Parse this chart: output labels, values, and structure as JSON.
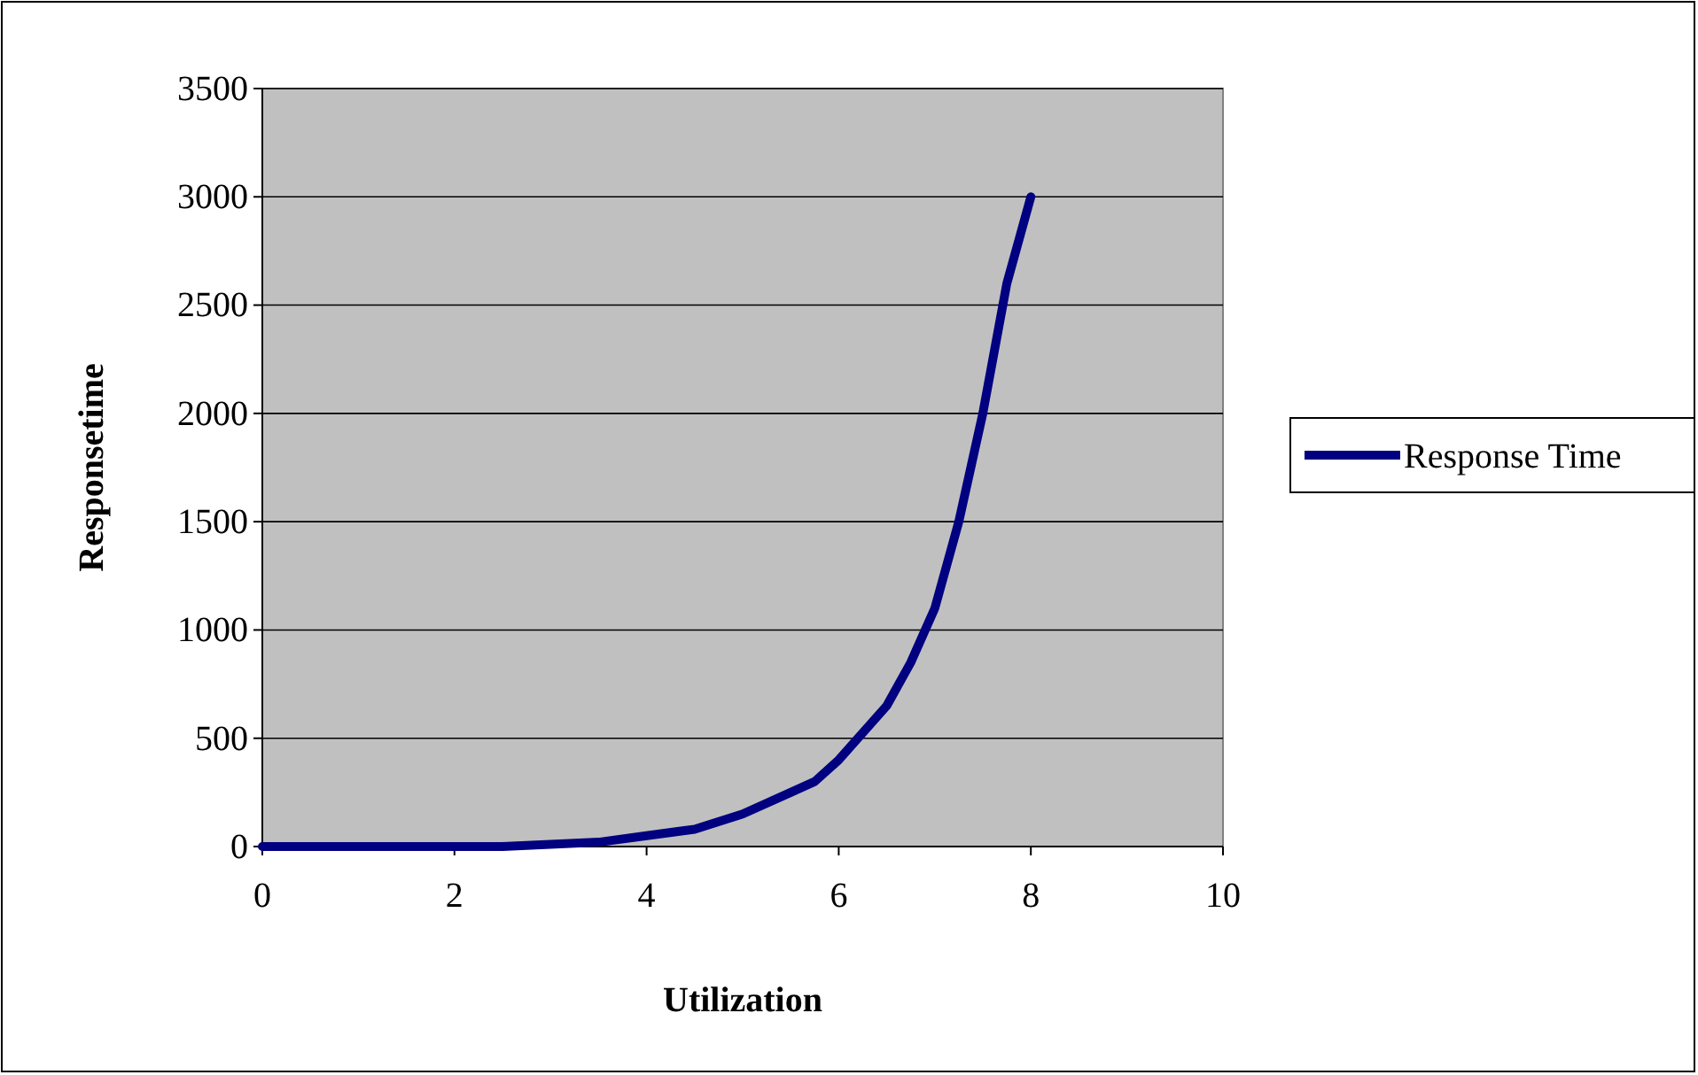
{
  "chart_data": {
    "type": "line",
    "xlabel": "Utilization",
    "ylabel": "Responsetime",
    "x": [
      0,
      1,
      2,
      2.5,
      3,
      3.5,
      4,
      4.5,
      5,
      5.5,
      5.75,
      6,
      6.5,
      6.75,
      7,
      7.25,
      7.5,
      7.75,
      8
    ],
    "series": [
      {
        "name": "Response Time",
        "color": "#000080",
        "values": [
          0,
          0,
          0,
          0,
          10,
          20,
          50,
          80,
          150,
          250,
          300,
          400,
          650,
          850,
          1100,
          1500,
          2000,
          2600,
          3000
        ]
      }
    ],
    "xlim": [
      0,
      10
    ],
    "xticks": [
      0,
      2,
      4,
      6,
      8,
      10
    ],
    "ylim": [
      0,
      3500
    ],
    "yticks": [
      0,
      500,
      1000,
      1500,
      2000,
      2500,
      3000,
      3500
    ],
    "grid": "y",
    "legend": "right",
    "marker": "none",
    "line_style": "solid"
  }
}
